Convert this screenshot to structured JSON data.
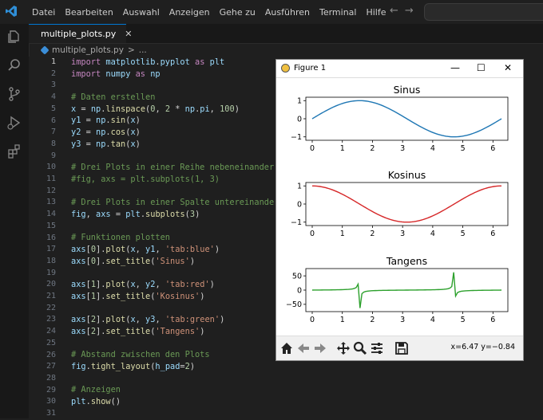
{
  "titlebar": {
    "menu": [
      "Datei",
      "Bearbeiten",
      "Auswahl",
      "Anzeigen",
      "Gehe zu",
      "Ausführen",
      "Terminal",
      "Hilfe"
    ]
  },
  "activity_icons": [
    "explorer-icon",
    "search-icon",
    "source-control-icon",
    "run-debug-icon",
    "extensions-icon"
  ],
  "tab": {
    "label": "multiple_plots.py",
    "close": "✕"
  },
  "breadcrumb": {
    "file": "multiple_plots.py",
    "sep": ">",
    "rest": "..."
  },
  "editor": {
    "active_line": 1,
    "lines": [
      "import matplotlib.pyplot as plt",
      "import numpy as np",
      "",
      "# Daten erstellen",
      "x = np.linspace(0, 2 * np.pi, 100)",
      "y1 = np.sin(x)",
      "y2 = np.cos(x)",
      "y3 = np.tan(x)",
      "",
      "# Drei Plots in einer Reihe nebeneinander",
      "#fig, axs = plt.subplots(1, 3)",
      "",
      "# Drei Plots in einer Spalte untereinander",
      "fig, axs = plt.subplots(3)",
      "",
      "# Funktionen plotten",
      "axs[0].plot(x, y1, 'tab:blue')",
      "axs[0].set_title('Sinus')",
      "",
      "axs[1].plot(x, y2, 'tab:red')",
      "axs[1].set_title('Kosinus')",
      "",
      "axs[2].plot(x, y3, 'tab:green')",
      "axs[2].set_title('Tangens')",
      "",
      "# Abstand zwischen den Plots",
      "fig.tight_layout(h_pad=2)",
      "",
      "# Anzeigen",
      "plt.show()",
      ""
    ]
  },
  "figure": {
    "window_title": "Figure 1",
    "controls": {
      "minimize": "—",
      "maximize": "☐",
      "close": "✕"
    },
    "status": "x=6.47 y=−0.84"
  },
  "chart_data": [
    {
      "type": "line",
      "title": "Sinus",
      "function": "sin",
      "color": "#1f77b4",
      "x_range": [
        0,
        6.283
      ],
      "xticks": [
        "0",
        "1",
        "2",
        "3",
        "4",
        "5",
        "6"
      ],
      "yticks": [
        "1",
        "0",
        "−1"
      ],
      "ylim": [
        -1.1,
        1.1
      ]
    },
    {
      "type": "line",
      "title": "Kosinus",
      "function": "cos",
      "color": "#d62728",
      "x_range": [
        0,
        6.283
      ],
      "xticks": [
        "0",
        "1",
        "2",
        "3",
        "4",
        "5",
        "6"
      ],
      "yticks": [
        "1",
        "0",
        "−1"
      ],
      "ylim": [
        -1.1,
        1.1
      ]
    },
    {
      "type": "line",
      "title": "Tangens",
      "function": "tan",
      "color": "#2ca02c",
      "x_range": [
        0,
        6.283
      ],
      "xticks": [
        "0",
        "1",
        "2",
        "3",
        "4",
        "5",
        "6"
      ],
      "yticks": [
        "50",
        "0",
        "−50"
      ],
      "ylim": [
        -70,
        70
      ]
    }
  ]
}
